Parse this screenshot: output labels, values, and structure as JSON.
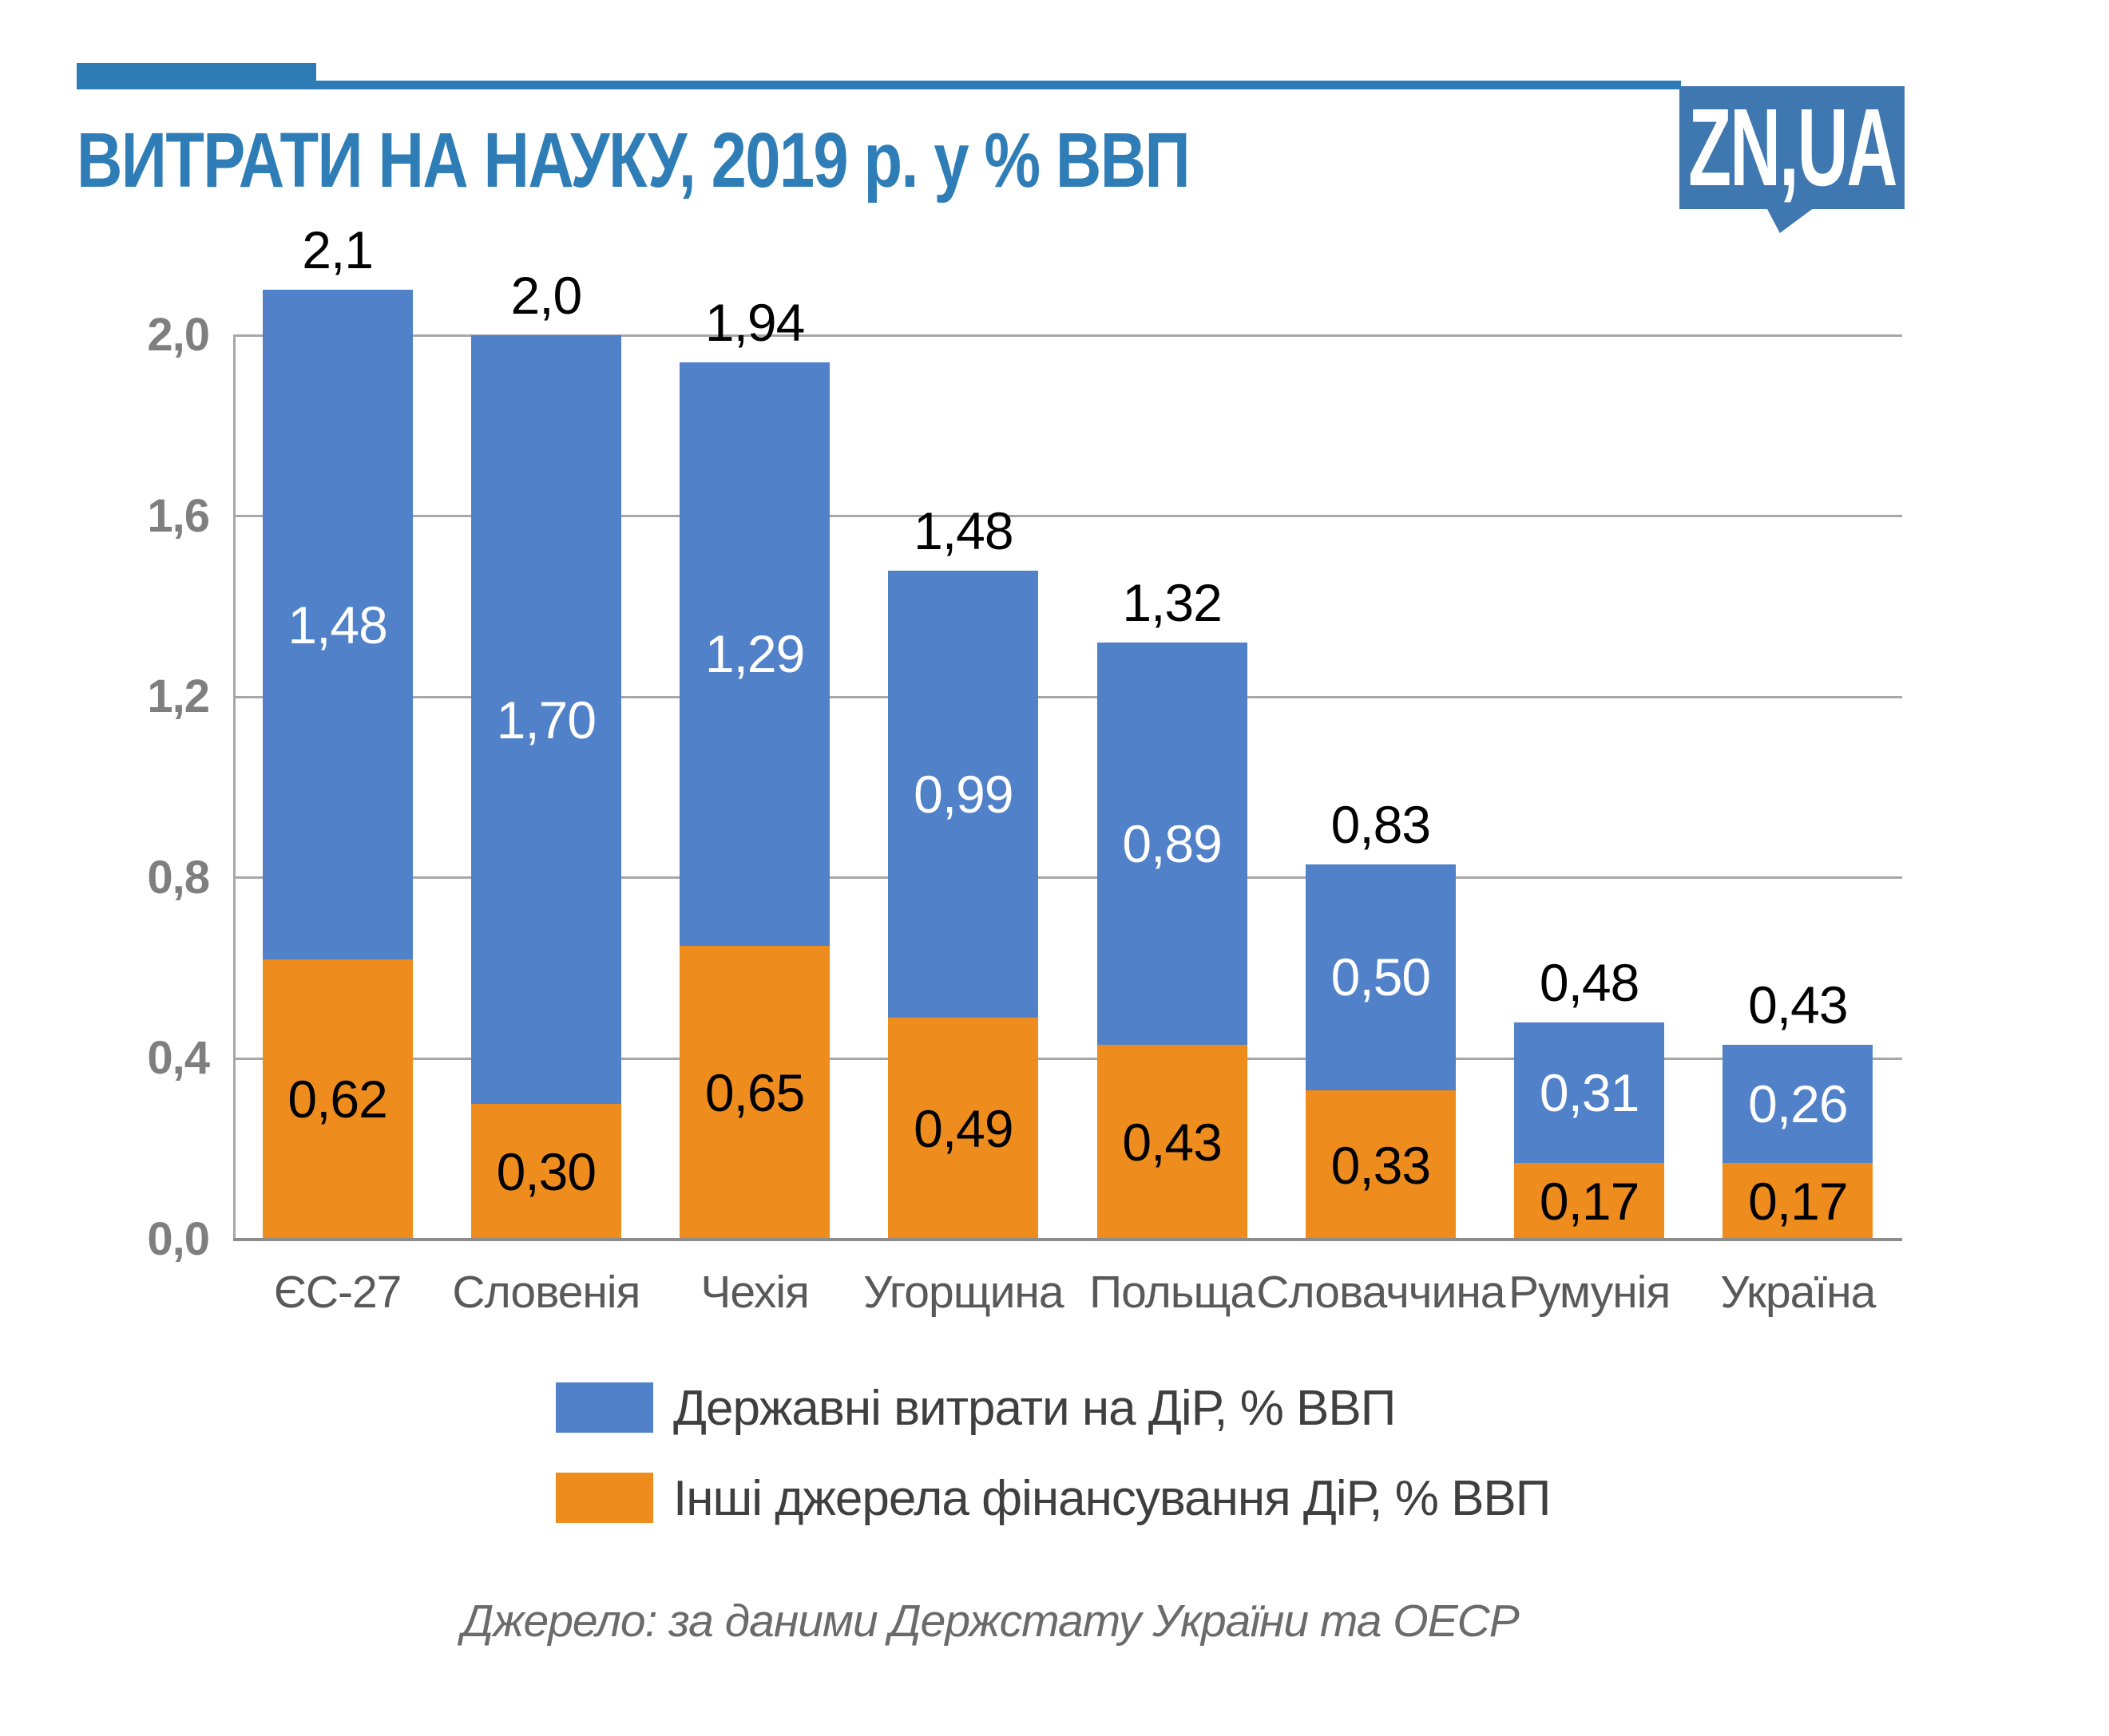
{
  "header": {
    "title": "ВИТРАТИ НА НАУКУ, 2019 р. у % ВВП",
    "logo_text": "ZN,UA",
    "accent_color": "#2E7CB5",
    "title_color": "#2E7DB6",
    "logo_color": "#3F78B0"
  },
  "chart_data": {
    "type": "bar",
    "stacked": true,
    "title": "ВИТРАТИ НА НАУКУ, 2019 р. у % ВВП",
    "categories": [
      "ЄС-27",
      "Словенія",
      "Чехія",
      "Угорщина",
      "Польща",
      "Словаччина",
      "Румунія",
      "Україна"
    ],
    "series": [
      {
        "name": "Державні витрати на ДіР, % ВВП",
        "color": "#5081C9",
        "values": [
          1.48,
          1.7,
          1.29,
          0.99,
          0.89,
          0.5,
          0.31,
          0.26
        ],
        "labels": [
          "1,48",
          "1,70",
          "1,29",
          "0,99",
          "0,89",
          "0,50",
          "0,31",
          "0,26"
        ],
        "label_color": "#FFFFFF"
      },
      {
        "name": "Інші джерела фінансування ДіР, % ВВП",
        "color": "#EE8C1E",
        "values": [
          0.62,
          0.3,
          0.65,
          0.49,
          0.43,
          0.33,
          0.17,
          0.17
        ],
        "labels": [
          "0,62",
          "0,30",
          "0,65",
          "0,49",
          "0,43",
          "0,33",
          "0,17",
          "0,17"
        ],
        "label_color": "#000000"
      }
    ],
    "totals": [
      "2,1",
      "2,0",
      "1,94",
      "1,48",
      "1,32",
      "0,83",
      "0,48",
      "0,43"
    ],
    "total_values": [
      2.1,
      2.0,
      1.94,
      1.48,
      1.32,
      0.83,
      0.48,
      0.43
    ],
    "y_ticks": [
      "0,0",
      "0,4",
      "0,8",
      "1,2",
      "1,6",
      "2,0"
    ],
    "y_tick_values": [
      0,
      0.4,
      0.8,
      1.2,
      1.6,
      2.0
    ],
    "ylim": [
      0,
      2.0
    ],
    "xlabel": "",
    "ylabel": "",
    "grid": true,
    "grid_color": "#A7A7A7",
    "legend_position": "bottom"
  },
  "source": "Джерело: за даними Держстату України  та ОЕСР"
}
